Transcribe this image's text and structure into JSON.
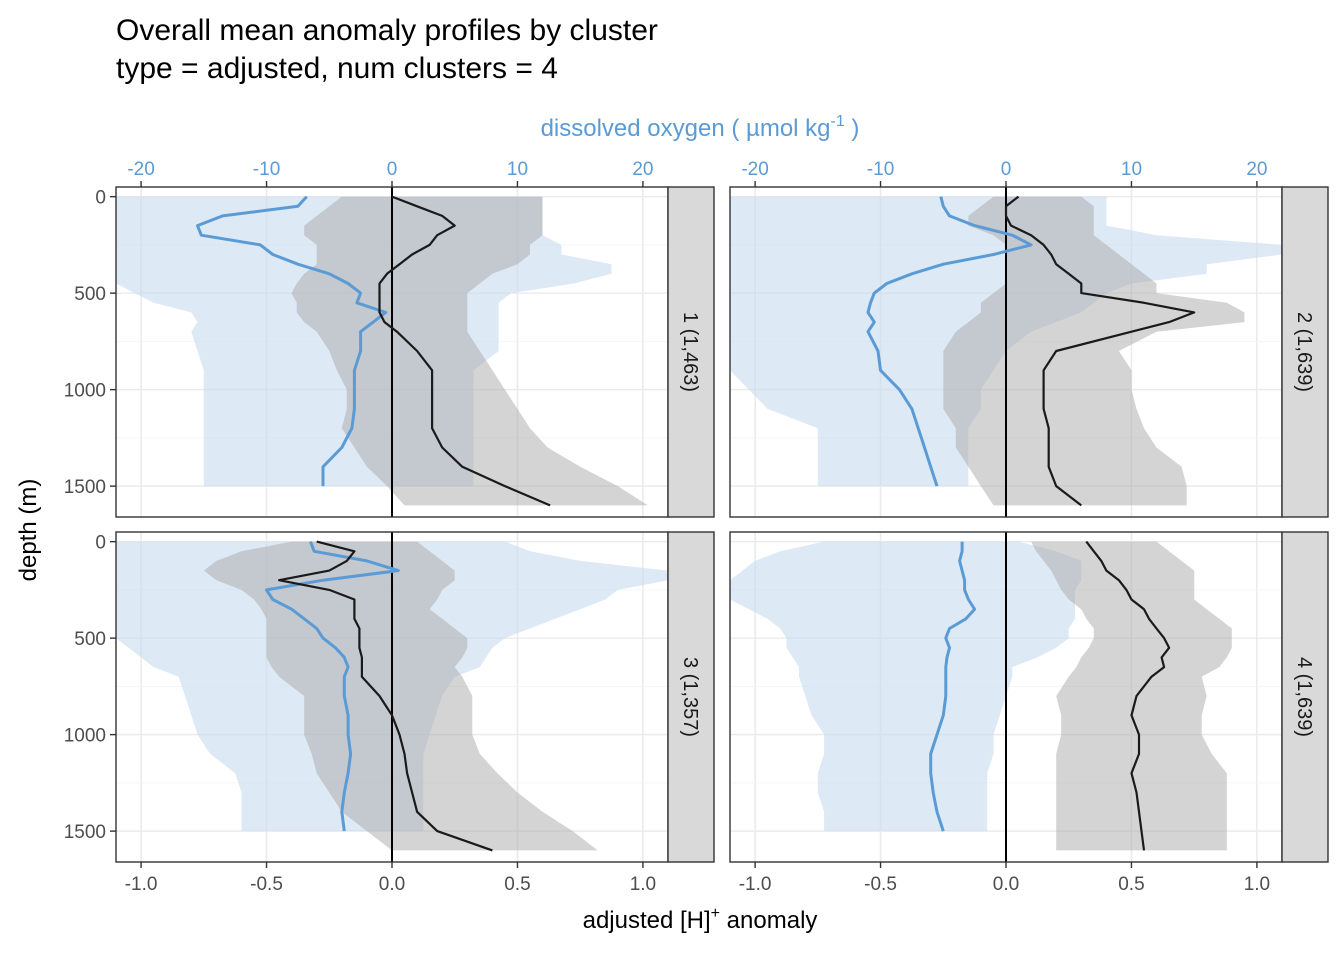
{
  "title_lines": [
    "Overall mean anomaly profiles by cluster",
    "type = adjusted, num clusters = 4"
  ],
  "colors": {
    "oxygen": "#5b9bd5",
    "hplus": "#1a1a1a",
    "oxygen_band": "#c6dbef",
    "hplus_band": "#a9a9a9",
    "strip": "#d9d9d9",
    "grid": "#ebebeb"
  },
  "chart_data": {
    "type": "line",
    "top_axis": {
      "label": "dissolved oxygen ( µmol kg",
      "label_sup": "-1",
      "label_tail": " )",
      "range": [
        -22,
        22
      ],
      "ticks": [
        -20,
        -10,
        0,
        10,
        20
      ],
      "tick_labels": [
        "-20",
        "-10",
        "0",
        "10",
        "20"
      ]
    },
    "bottom_axis": {
      "label": "adjusted [H]",
      "label_sup": "+",
      "label_tail": " anomaly",
      "range": [
        -1.1,
        1.1
      ],
      "ticks": [
        -1.0,
        -0.5,
        0.0,
        0.5,
        1.0
      ],
      "tick_labels": [
        "-1.0",
        "-0.5",
        "0.0",
        "0.5",
        "1.0"
      ]
    },
    "y_axis": {
      "label": "depth (m)",
      "range": [
        1660,
        -50
      ],
      "reversed": true,
      "ticks": [
        0,
        500,
        1000,
        1500
      ],
      "tick_labels": [
        "0",
        "500",
        "1000",
        "1500"
      ]
    },
    "panels": [
      {
        "strip": "1 (1,463)",
        "oxygen": {
          "depth": [
            0,
            50,
            100,
            150,
            200,
            250,
            300,
            350,
            400,
            450,
            500,
            550,
            600,
            650,
            700,
            800,
            900,
            1000,
            1100,
            1200,
            1300,
            1400,
            1500
          ],
          "mean": [
            -6.8,
            -7.5,
            -13.5,
            -15.5,
            -15.2,
            -10.5,
            -9.5,
            -7.5,
            -5,
            -3.5,
            -2.5,
            -2.8,
            -0.5,
            -1.5,
            -2.5,
            -2.5,
            -3,
            -3,
            -3,
            -3.2,
            -4,
            -5.5,
            -5.5
          ],
          "lower": [
            -22,
            -22,
            -22,
            -22,
            -22,
            -22,
            -22,
            -22,
            -22,
            -22,
            -20.5,
            -19,
            -16,
            -15.5,
            -16,
            -15.5,
            -15,
            -15,
            -15,
            -15,
            -15,
            -15,
            -15
          ],
          "upper": [
            12,
            12,
            12,
            12,
            12,
            13.5,
            13.5,
            17.5,
            17.5,
            14.5,
            9.5,
            8.5,
            8.5,
            8.5,
            8.5,
            8.5,
            6.5,
            6.5,
            6.5,
            6.5,
            6.5,
            6.5,
            6.5
          ]
        },
        "hplus": {
          "depth": [
            0,
            50,
            100,
            150,
            200,
            250,
            300,
            350,
            400,
            450,
            500,
            550,
            600,
            650,
            700,
            800,
            900,
            1000,
            1100,
            1200,
            1300,
            1400,
            1500,
            1600
          ],
          "mean": [
            0,
            0.1,
            0.2,
            0.25,
            0.18,
            0.15,
            0.08,
            0.03,
            -0.02,
            -0.05,
            -0.05,
            -0.05,
            -0.05,
            -0.03,
            0.02,
            0.1,
            0.16,
            0.16,
            0.16,
            0.16,
            0.2,
            0.28,
            0.45,
            0.63
          ],
          "lower": [
            -0.2,
            -0.25,
            -0.3,
            -0.35,
            -0.35,
            -0.3,
            -0.3,
            -0.3,
            -0.35,
            -0.38,
            -0.4,
            -0.38,
            -0.38,
            -0.35,
            -0.3,
            -0.25,
            -0.22,
            -0.18,
            -0.18,
            -0.2,
            -0.15,
            -0.1,
            -0.02,
            0.05
          ],
          "upper": [
            0.6,
            0.6,
            0.6,
            0.6,
            0.6,
            0.55,
            0.55,
            0.5,
            0.4,
            0.35,
            0.3,
            0.3,
            0.3,
            0.3,
            0.3,
            0.35,
            0.4,
            0.45,
            0.5,
            0.55,
            0.62,
            0.75,
            0.9,
            1.02
          ]
        }
      },
      {
        "strip": "2 (1,639)",
        "oxygen": {
          "depth": [
            0,
            50,
            100,
            150,
            200,
            250,
            300,
            350,
            400,
            450,
            500,
            550,
            600,
            650,
            700,
            800,
            900,
            1000,
            1100,
            1200,
            1300,
            1400,
            1500
          ],
          "mean": [
            -5.2,
            -5,
            -4.5,
            -2.5,
            0.5,
            2,
            -1,
            -5,
            -7.5,
            -9.5,
            -10.5,
            -10.8,
            -11,
            -10.5,
            -11,
            -10.2,
            -10,
            -8.5,
            -7.5,
            -7,
            -6.5,
            -6,
            -5.5
          ],
          "lower": [
            -22,
            -22,
            -22,
            -22,
            -22,
            -22,
            -22,
            -22,
            -22,
            -22,
            -22,
            -22,
            -22,
            -22,
            -22,
            -22,
            -22,
            -20.5,
            -19,
            -15,
            -15,
            -15,
            -15
          ],
          "upper": [
            8,
            8,
            8,
            8,
            12,
            22,
            22,
            16,
            16,
            10,
            8,
            7,
            6,
            4,
            2,
            0,
            -1,
            -2,
            -2,
            -3,
            -3,
            -3,
            -3
          ]
        },
        "hplus": {
          "depth": [
            0,
            50,
            100,
            150,
            200,
            250,
            300,
            350,
            400,
            450,
            500,
            550,
            600,
            650,
            700,
            800,
            900,
            1000,
            1100,
            1200,
            1300,
            1400,
            1500,
            1600
          ],
          "mean": [
            0.05,
            0,
            0,
            0.02,
            0.1,
            0.15,
            0.18,
            0.2,
            0.25,
            0.3,
            0.3,
            0.55,
            0.75,
            0.65,
            0.5,
            0.2,
            0.15,
            0.15,
            0.15,
            0.17,
            0.17,
            0.17,
            0.2,
            0.3
          ],
          "lower": [
            -0.05,
            -0.1,
            -0.15,
            -0.15,
            -0.05,
            0,
            0,
            0,
            0,
            0,
            -0.05,
            -0.1,
            -0.1,
            -0.15,
            -0.2,
            -0.25,
            -0.25,
            -0.25,
            -0.25,
            -0.2,
            -0.2,
            -0.15,
            -0.1,
            -0.05
          ],
          "upper": [
            0.3,
            0.35,
            0.35,
            0.35,
            0.35,
            0.4,
            0.45,
            0.5,
            0.55,
            0.6,
            0.6,
            0.88,
            0.95,
            0.95,
            0.6,
            0.45,
            0.5,
            0.5,
            0.52,
            0.55,
            0.6,
            0.7,
            0.72,
            0.72
          ]
        }
      },
      {
        "strip": "3 (1,357)",
        "oxygen": {
          "depth": [
            0,
            50,
            100,
            150,
            200,
            250,
            300,
            350,
            400,
            450,
            500,
            550,
            600,
            650,
            700,
            800,
            900,
            1000,
            1100,
            1200,
            1300,
            1400,
            1500
          ],
          "mean": [
            -6.5,
            -6.2,
            -2,
            0.5,
            -5.5,
            -10,
            -9.5,
            -8,
            -7,
            -6,
            -5.5,
            -4.5,
            -3.8,
            -3.5,
            -3.8,
            -3.8,
            -3.5,
            -3.5,
            -3.3,
            -3.5,
            -3.8,
            -4,
            -3.8
          ],
          "lower": [
            -22,
            -22,
            -22,
            -22,
            -22,
            -22,
            -22,
            -22,
            -22,
            -22,
            -22,
            -21,
            -20,
            -19,
            -17,
            -16.5,
            -16,
            -15.5,
            -14.5,
            -12.5,
            -12,
            -12,
            -12
          ],
          "upper": [
            9,
            11,
            15,
            22,
            22,
            18,
            17,
            15,
            13,
            11,
            9,
            8,
            7.5,
            7,
            5,
            4,
            3.5,
            3,
            2.5,
            2.5,
            2.5,
            2.5,
            2.5
          ]
        },
        "hplus": {
          "depth": [
            0,
            50,
            100,
            150,
            200,
            250,
            300,
            350,
            400,
            450,
            500,
            550,
            600,
            650,
            700,
            800,
            900,
            1000,
            1100,
            1200,
            1300,
            1400,
            1500,
            1600
          ],
          "mean": [
            -0.3,
            -0.15,
            -0.18,
            -0.25,
            -0.45,
            -0.25,
            -0.15,
            -0.15,
            -0.15,
            -0.13,
            -0.13,
            -0.13,
            -0.12,
            -0.12,
            -0.12,
            -0.05,
            0,
            0.03,
            0.05,
            0.06,
            0.08,
            0.1,
            0.18,
            0.4
          ],
          "lower": [
            -0.4,
            -0.6,
            -0.7,
            -0.75,
            -0.7,
            -0.6,
            -0.55,
            -0.52,
            -0.5,
            -0.5,
            -0.5,
            -0.5,
            -0.5,
            -0.48,
            -0.45,
            -0.35,
            -0.35,
            -0.35,
            -0.32,
            -0.3,
            -0.25,
            -0.2,
            -0.1,
            0
          ],
          "upper": [
            0.1,
            0.15,
            0.2,
            0.25,
            0.25,
            0.2,
            0.18,
            0.15,
            0.2,
            0.25,
            0.3,
            0.3,
            0.28,
            0.25,
            0.28,
            0.32,
            0.32,
            0.32,
            0.35,
            0.42,
            0.5,
            0.6,
            0.72,
            0.82
          ]
        }
      },
      {
        "strip": "4 (1,639)",
        "oxygen": {
          "depth": [
            0,
            50,
            100,
            150,
            200,
            250,
            300,
            350,
            400,
            450,
            500,
            550,
            600,
            650,
            700,
            800,
            900,
            1000,
            1100,
            1200,
            1300,
            1400,
            1500
          ],
          "mean": [
            -3.5,
            -3.5,
            -3.7,
            -3.5,
            -3.3,
            -3.3,
            -3,
            -2.5,
            -3.2,
            -4.5,
            -4.8,
            -4.5,
            -4.7,
            -4.8,
            -4.8,
            -4.8,
            -5,
            -5.5,
            -6,
            -6,
            -5.8,
            -5.5,
            -5
          ],
          "lower": [
            -14.5,
            -18,
            -20,
            -21,
            -22,
            -22,
            -22,
            -20.5,
            -19,
            -18,
            -17.5,
            -17.5,
            -17,
            -16.5,
            -16.5,
            -16,
            -15.5,
            -14.5,
            -14.5,
            -15,
            -15,
            -14.5,
            -14.5
          ],
          "upper": [
            1,
            4,
            6,
            6,
            6,
            5.5,
            5.5,
            5.5,
            5.5,
            5,
            5,
            4,
            2.5,
            0.5,
            0.5,
            0,
            -0.5,
            -1,
            -1,
            -1.5,
            -1.5,
            -1.5,
            -1.5
          ]
        },
        "hplus": {
          "depth": [
            0,
            50,
            100,
            150,
            200,
            250,
            300,
            350,
            400,
            450,
            500,
            550,
            600,
            650,
            700,
            800,
            900,
            1000,
            1100,
            1200,
            1300,
            1400,
            1500,
            1600
          ],
          "mean": [
            0.32,
            0.35,
            0.38,
            0.4,
            0.45,
            0.48,
            0.5,
            0.55,
            0.57,
            0.6,
            0.63,
            0.65,
            0.62,
            0.63,
            0.58,
            0.52,
            0.5,
            0.53,
            0.53,
            0.5,
            0.52,
            0.53,
            0.54,
            0.55
          ],
          "lower": [
            0.1,
            0.12,
            0.15,
            0.18,
            0.2,
            0.22,
            0.25,
            0.3,
            0.32,
            0.35,
            0.35,
            0.33,
            0.3,
            0.28,
            0.25,
            0.2,
            0.22,
            0.22,
            0.2,
            0.2,
            0.2,
            0.2,
            0.2,
            0.2
          ],
          "upper": [
            0.6,
            0.65,
            0.7,
            0.75,
            0.75,
            0.75,
            0.75,
            0.8,
            0.85,
            0.9,
            0.9,
            0.9,
            0.88,
            0.85,
            0.78,
            0.8,
            0.78,
            0.78,
            0.82,
            0.88,
            0.88,
            0.88,
            0.88,
            0.88
          ]
        }
      }
    ]
  }
}
